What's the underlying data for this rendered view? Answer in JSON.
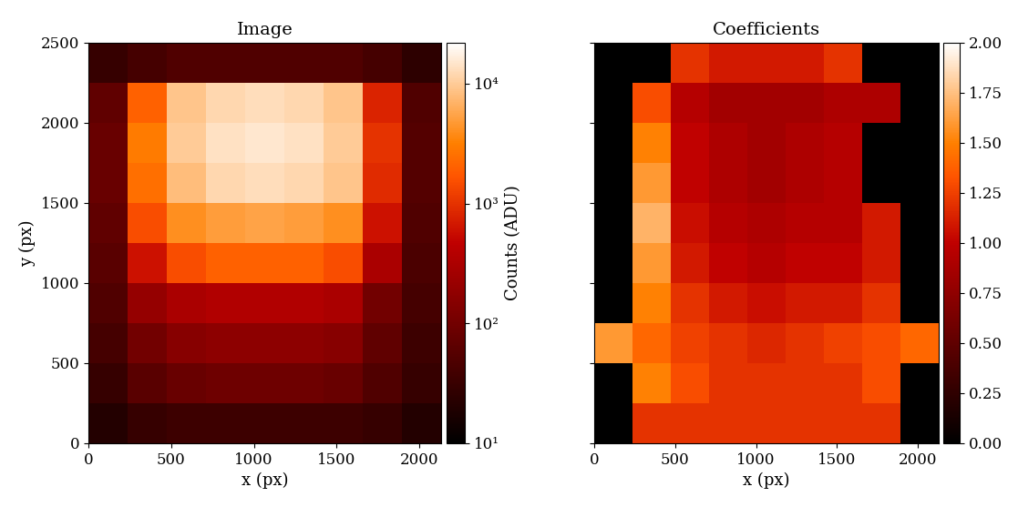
{
  "chart_data": [
    {
      "type": "heatmap",
      "title": "Image",
      "x_label": "x (px)",
      "y_label": "y (px)",
      "xlim": [
        0,
        2130
      ],
      "ylim": [
        0,
        2500
      ],
      "xticks": [
        0,
        500,
        1000,
        1500,
        2000
      ],
      "yticks": [
        0,
        500,
        1000,
        1500,
        2000,
        2500
      ],
      "x_edges": [
        0,
        237,
        474,
        711,
        948,
        1185,
        1422,
        1659,
        1896,
        2130
      ],
      "y_edges": [
        0,
        250,
        500,
        750,
        1000,
        1250,
        1500,
        1750,
        2000,
        2250,
        2500
      ],
      "cells": [
        [
          20,
          30,
          35,
          35,
          35,
          35,
          35,
          30,
          20
        ],
        [
          30,
          60,
          80,
          90,
          90,
          90,
          80,
          50,
          30
        ],
        [
          40,
          100,
          150,
          170,
          170,
          170,
          150,
          70,
          35
        ],
        [
          50,
          200,
          300,
          350,
          350,
          350,
          300,
          100,
          40
        ],
        [
          60,
          600,
          1500,
          2000,
          2000,
          2000,
          1500,
          300,
          45
        ],
        [
          70,
          1500,
          4000,
          5000,
          5500,
          5000,
          4000,
          600,
          50
        ],
        [
          80,
          2500,
          8000,
          12000,
          13000,
          12000,
          9000,
          900,
          55
        ],
        [
          80,
          3000,
          10000,
          14000,
          15000,
          14000,
          10000,
          1000,
          55
        ],
        [
          70,
          2000,
          9000,
          12000,
          13000,
          12000,
          9000,
          800,
          50
        ],
        [
          30,
          40,
          50,
          50,
          50,
          50,
          50,
          40,
          25
        ]
      ],
      "colorbar": {
        "label": "Counts (ADU)",
        "range": [
          10,
          22000
        ],
        "scale": "log",
        "ticks": [
          {
            "value": 10,
            "label": "10¹"
          },
          {
            "value": 100,
            "label": "10²"
          },
          {
            "value": 1000,
            "label": "10³"
          },
          {
            "value": 10000,
            "label": "10⁴"
          }
        ]
      }
    },
    {
      "type": "heatmap",
      "title": "Coefficients",
      "x_label": "x (px)",
      "xlim": [
        0,
        2130
      ],
      "ylim": [
        0,
        2500
      ],
      "xticks": [
        0,
        500,
        1000,
        1500,
        2000
      ],
      "yticks": [
        0,
        500,
        1000,
        1500,
        2000,
        2500
      ],
      "tick_labels": "x",
      "x_edges": [
        0,
        237,
        474,
        711,
        948,
        1185,
        1422,
        1659,
        1896,
        2130
      ],
      "y_edges": [
        0,
        250,
        500,
        750,
        1000,
        1250,
        1500,
        1750,
        2000,
        2250,
        2500
      ],
      "cells": [
        [
          0,
          1.2,
          1.2,
          1.2,
          1.2,
          1.2,
          1.2,
          1.2,
          0
        ],
        [
          0,
          1.5,
          1.3,
          1.2,
          1.2,
          1.2,
          1.2,
          1.3,
          0
        ],
        [
          1.6,
          1.4,
          1.25,
          1.2,
          1.15,
          1.2,
          1.25,
          1.3,
          1.4
        ],
        [
          0,
          1.5,
          1.2,
          1.1,
          1.05,
          1.1,
          1.1,
          1.2,
          0
        ],
        [
          0,
          1.6,
          1.1,
          1.0,
          0.95,
          1.0,
          1.0,
          1.1,
          0
        ],
        [
          0,
          1.7,
          1.05,
          0.95,
          0.9,
          0.95,
          0.95,
          1.1,
          0
        ],
        [
          0,
          1.6,
          1.0,
          0.9,
          0.85,
          0.9,
          0.95,
          0,
          0
        ],
        [
          0,
          1.5,
          1.0,
          0.9,
          0.85,
          0.9,
          0.95,
          0,
          0
        ],
        [
          0,
          1.3,
          0.95,
          0.85,
          0.85,
          0.85,
          0.9,
          0.9,
          0
        ],
        [
          0,
          0,
          1.2,
          1.1,
          1.1,
          1.1,
          1.2,
          0,
          0
        ]
      ],
      "colorbar": {
        "range": [
          0,
          2
        ],
        "scale": "linear",
        "ticks": [
          {
            "value": 0,
            "label": "0.00"
          },
          {
            "value": 0.25,
            "label": "0.25"
          },
          {
            "value": 0.5,
            "label": "0.50"
          },
          {
            "value": 0.75,
            "label": "0.75"
          },
          {
            "value": 1.0,
            "label": "1.00"
          },
          {
            "value": 1.25,
            "label": "1.25"
          },
          {
            "value": 1.5,
            "label": "1.50"
          },
          {
            "value": 1.75,
            "label": "1.75"
          },
          {
            "value": 2.0,
            "label": "2.00"
          }
        ]
      }
    }
  ]
}
